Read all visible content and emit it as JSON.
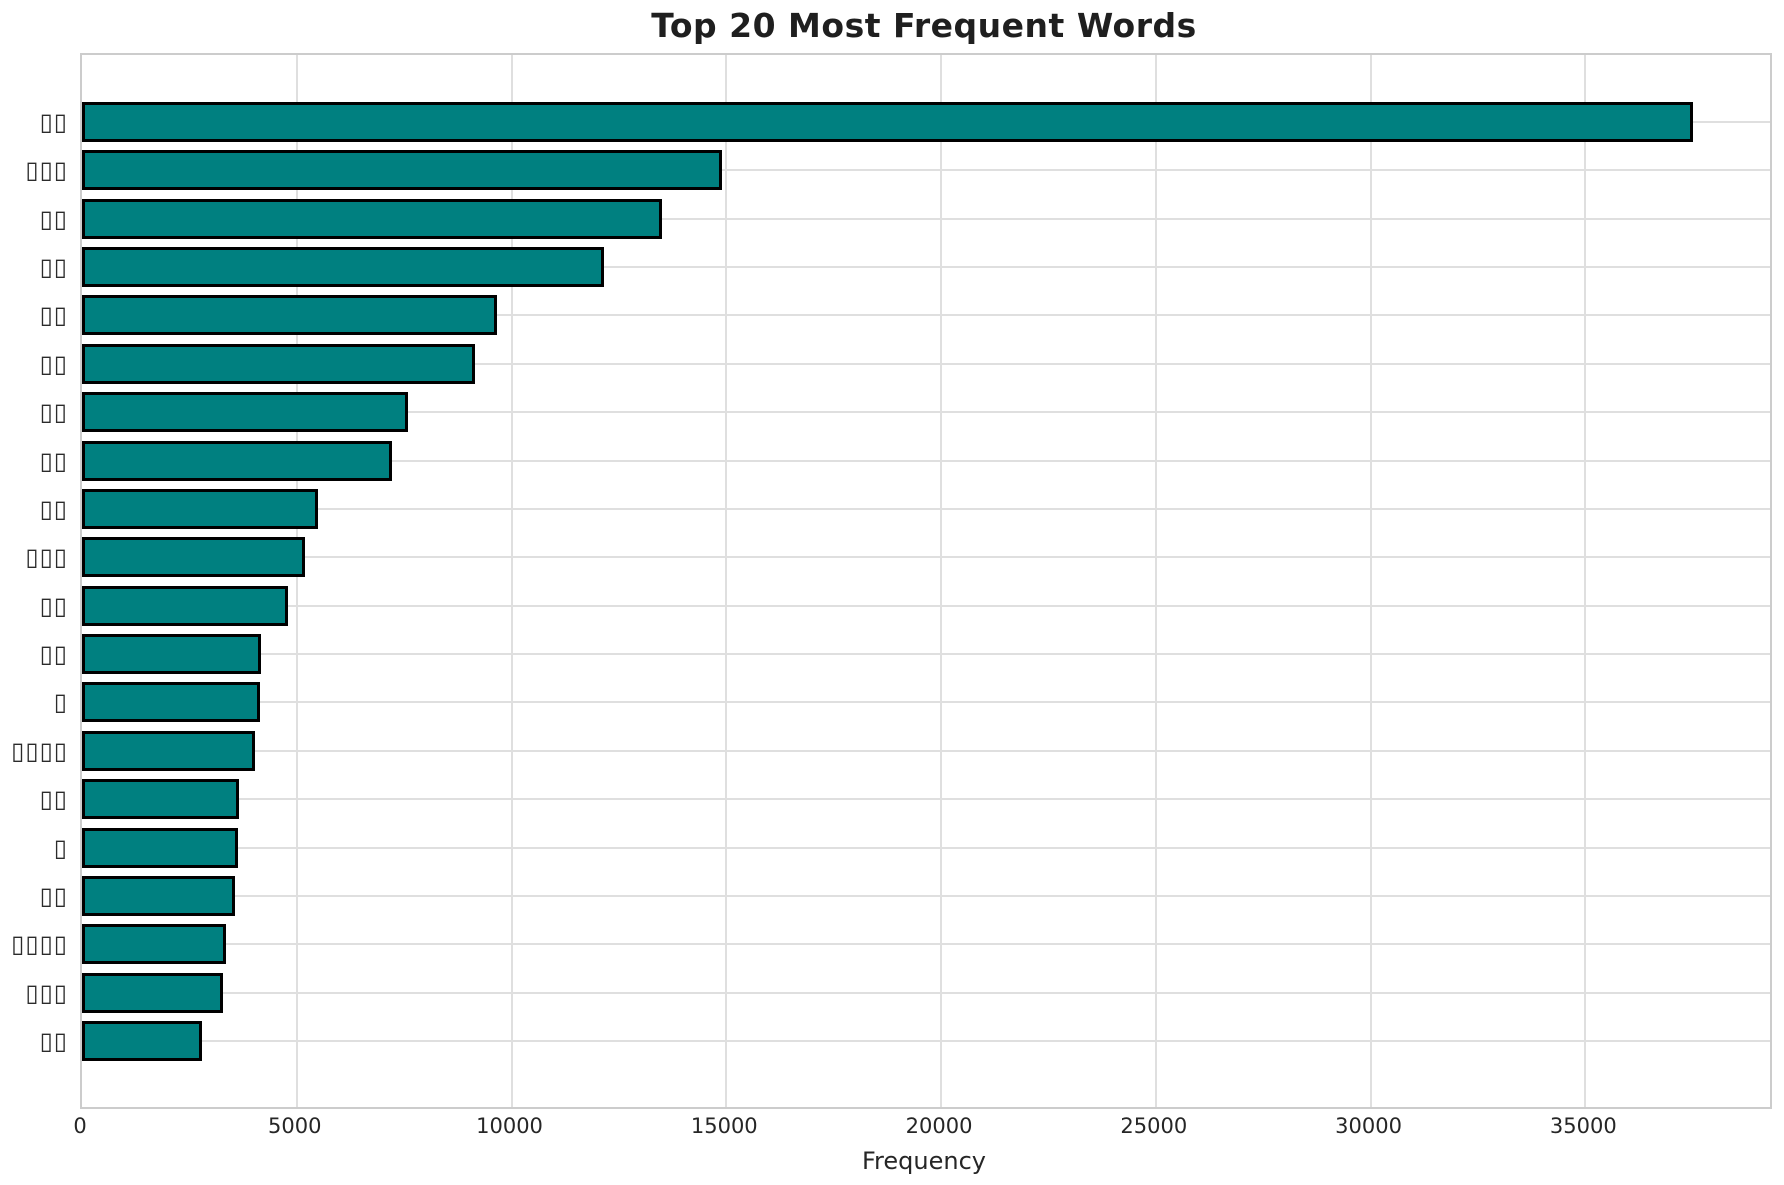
{
  "chart_data": {
    "type": "bar",
    "orientation": "horizontal",
    "title": "Top 20 Most Frequent Words",
    "xlabel": "Frequency",
    "ylabel": "",
    "categories": [
      "▯▯",
      "▯▯▯",
      "▯▯",
      "▯▯",
      "▯▯",
      "▯▯",
      "▯▯",
      "▯▯",
      "▯▯",
      "▯▯▯",
      "▯▯",
      "▯▯",
      "▯",
      "▯▯▯▯",
      "▯▯",
      "▯",
      "▯▯",
      "▯▯▯▯",
      "▯▯▯",
      "▯▯"
    ],
    "category_glyphs": "missing-glyph tofu boxes (unrenderable CJK words)",
    "values": [
      37500,
      14900,
      13500,
      12150,
      9660,
      9150,
      7590,
      7220,
      5500,
      5190,
      4800,
      4170,
      4150,
      4030,
      3660,
      3630,
      3560,
      3350,
      3280,
      2800
    ],
    "xticks": [
      0,
      5000,
      10000,
      15000,
      20000,
      25000,
      30000,
      35000
    ],
    "xlim": [
      0,
      39300
    ],
    "grid": true,
    "legend": "none",
    "bar_color": "#008080",
    "bar_edge_color": "#000000",
    "grid_color": "#dfdfdf",
    "frame_color": "#cccccc"
  }
}
